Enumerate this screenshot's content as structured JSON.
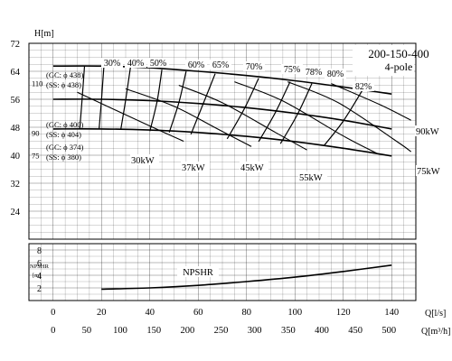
{
  "chart_data": {
    "type": "line",
    "title": "200-150-400",
    "subtitle": "4-pole",
    "head_axis": {
      "label": "H[m]",
      "ticks": [
        24,
        32,
        40,
        48,
        56,
        64,
        72
      ],
      "range": [
        16,
        72
      ]
    },
    "npshr_axis": {
      "label_line1": "NPSHR",
      "label_line2": "[m]",
      "ticks": [
        2,
        4,
        6,
        8
      ],
      "range": [
        0,
        9
      ],
      "curve_label": "NPSHR",
      "x": [
        20,
        40,
        60,
        80,
        100,
        120,
        140
      ],
      "y": [
        1.8,
        2.0,
        2.4,
        3.0,
        3.7,
        4.6,
        5.6
      ]
    },
    "x_axis_ls": {
      "label": "Q[l/s]",
      "ticks": [
        0,
        20,
        40,
        60,
        80,
        100,
        120,
        140
      ],
      "range": [
        -10,
        150
      ]
    },
    "x_axis_m3h": {
      "label": "Q[m³/h]",
      "ticks": [
        0,
        50,
        100,
        150,
        200,
        250,
        300,
        350,
        400,
        450,
        500
      ]
    },
    "head_curves": [
      {
        "label_lines": [
          "(GC: ϕ 438)",
          "(SS: ϕ 438)"
        ],
        "head_label": "110",
        "x": [
          0,
          20,
          40,
          60,
          80,
          100,
          120,
          140
        ],
        "y": [
          65.5,
          65.5,
          65.0,
          64.0,
          62.8,
          61.3,
          59.5,
          57.5
        ]
      },
      {
        "label_lines": [
          "(GC: ϕ 400)",
          "(SS: ϕ 404)"
        ],
        "head_label": "90",
        "x": [
          0,
          20,
          40,
          60,
          80,
          100,
          120,
          140
        ],
        "y": [
          56.0,
          56.0,
          55.6,
          54.8,
          53.6,
          52.0,
          50.0,
          47.5
        ]
      },
      {
        "label_lines": [
          "(GC: ϕ 374)",
          "(SS: ϕ 380)"
        ],
        "head_label": "75",
        "x": [
          0,
          20,
          40,
          60,
          80,
          100,
          120,
          140
        ],
        "y": [
          47.5,
          47.5,
          47.2,
          46.5,
          45.4,
          43.9,
          42.0,
          39.8
        ]
      }
    ],
    "efficiency_labels": [
      "30%",
      "40%",
      "50%",
      "60%",
      "65%",
      "70%",
      "75%",
      "78%",
      "80%",
      "82%"
    ],
    "efficiency_lines": [
      {
        "label": "30%",
        "x": [
          13,
          12,
          11
        ],
        "y": [
          65.5,
          56,
          47.5
        ]
      },
      {
        "label": "40%",
        "x": [
          21,
          20,
          19
        ],
        "y": [
          65.3,
          55.9,
          47.4
        ]
      },
      {
        "label": "50%",
        "x": [
          32,
          30,
          28
        ],
        "y": [
          65.3,
          55.8,
          47.3
        ]
      },
      {
        "label": "60%",
        "x": [
          45,
          43,
          40
        ],
        "y": [
          64.5,
          55.4,
          46.9
        ]
      },
      {
        "label": "65%",
        "x": [
          55,
          52,
          48
        ],
        "y": [
          64.0,
          55.0,
          46.5
        ]
      },
      {
        "label": "70%",
        "x": [
          67,
          62,
          57
        ],
        "y": [
          63.3,
          54.6,
          46.0
        ]
      },
      {
        "label": "75%",
        "x": [
          85,
          79,
          72
        ],
        "y": [
          62.0,
          53.2,
          44.7
        ]
      },
      {
        "label": "78%",
        "x": [
          98,
          92,
          85
        ],
        "y": [
          61.0,
          52.3,
          43.9
        ]
      },
      {
        "label": "80%",
        "x": [
          107,
          101,
          94
        ],
        "y": [
          60.5,
          51.6,
          43.3
        ]
      },
      {
        "label": "82%",
        "x": [
          128,
          120,
          112
        ],
        "y": [
          58.7,
          49.8,
          42.7
        ]
      }
    ],
    "power_lines": [
      {
        "label": "30kW",
        "x": [
          10,
          38,
          54
        ],
        "y": [
          58.0,
          49.0,
          44.0
        ]
      },
      {
        "label": "37kW",
        "x": [
          30,
          50,
          68,
          82
        ],
        "y": [
          59.0,
          54.0,
          47.5,
          42.5
        ]
      },
      {
        "label": "45kW",
        "x": [
          52,
          70,
          92,
          105
        ],
        "y": [
          60.0,
          55.0,
          46.5,
          41.5
        ]
      },
      {
        "label": "55kW",
        "x": [
          75,
          95,
          120,
          134
        ],
        "y": [
          61.0,
          55.5,
          45.5,
          40.5
        ]
      },
      {
        "label": "75kW",
        "x": [
          97,
          118,
          142,
          148
        ],
        "y": [
          61.0,
          55.0,
          44.0,
          41.0
        ]
      },
      {
        "label": "90kW",
        "x": [
          115,
          135,
          148
        ],
        "y": [
          60.5,
          54.5,
          50.0
        ]
      }
    ],
    "power_labels": [
      "30kW",
      "37kW",
      "45kW",
      "55kW",
      "75kW",
      "90kW"
    ],
    "grid": true
  }
}
